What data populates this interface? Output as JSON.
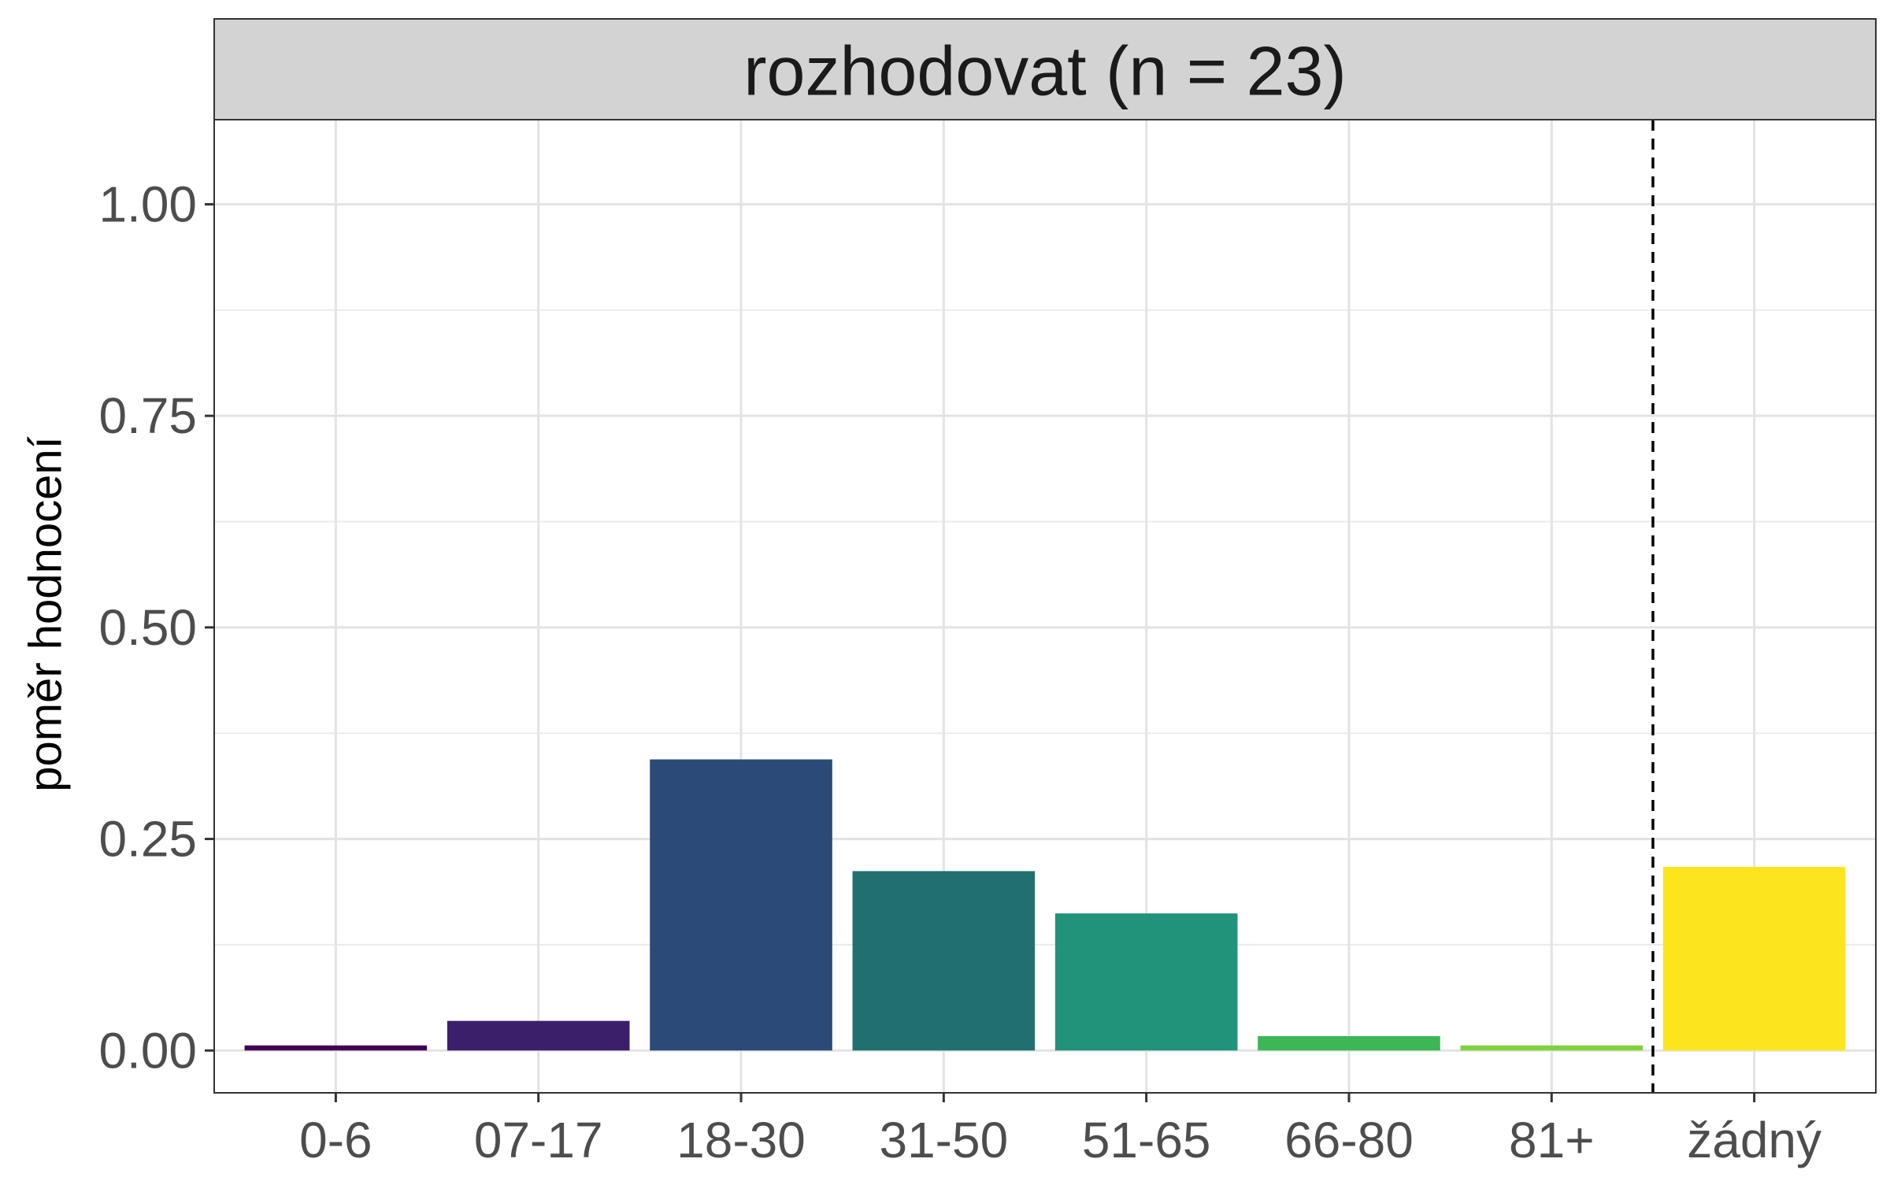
{
  "chart_data": {
    "type": "bar",
    "facet_title": "rozhodovat (n = 23)",
    "ylabel": "poměr hodnocení",
    "xlabel": "",
    "categories": [
      "0-6",
      "07-17",
      "18-30",
      "31-50",
      "51-65",
      "66-80",
      "81+",
      "žádný"
    ],
    "values": [
      0.006,
      0.035,
      0.344,
      0.212,
      0.162,
      0.017,
      0.006,
      0.217
    ],
    "colors": [
      "#440154",
      "#3B1F6B",
      "#2C4A78",
      "#21706F",
      "#21937A",
      "#3DB656",
      "#7ED33D",
      "#FDE51E"
    ],
    "ylim": [
      -0.05,
      1.1
    ],
    "yticks": [
      0.0,
      0.25,
      0.5,
      0.75,
      1.0
    ],
    "ytick_labels": [
      "0.00",
      "0.25",
      "0.50",
      "0.75",
      "1.00"
    ],
    "grid": true,
    "reference_line": {
      "style": "dashed",
      "between": [
        "81+",
        "žádný"
      ]
    }
  }
}
